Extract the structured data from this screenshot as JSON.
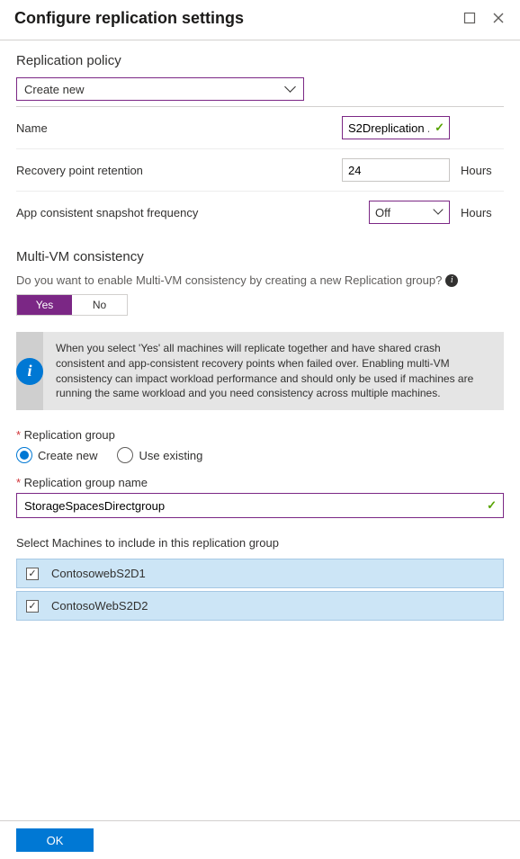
{
  "header": {
    "title": "Configure replication settings"
  },
  "policy": {
    "section_title": "Replication policy",
    "dropdown_value": "Create new",
    "name_label": "Name",
    "name_value": "S2Dreplication ...",
    "retention_label": "Recovery point retention",
    "retention_value": "24",
    "retention_unit": "Hours",
    "snapshot_label": "App consistent snapshot frequency",
    "snapshot_value": "Off",
    "snapshot_unit": "Hours"
  },
  "multivm": {
    "section_title": "Multi-VM consistency",
    "question": "Do you want to enable Multi-VM consistency by creating a new Replication group?",
    "yes": "Yes",
    "no": "No",
    "info_text": "When you select 'Yes' all machines will replicate together and have shared crash consistent and app-consistent recovery points when failed over. Enabling multi-VM consistency can impact workload performance and should only be used if machines are running the same workload and you need consistency across multiple machines."
  },
  "repgroup": {
    "label": "Replication group",
    "create_new": "Create new",
    "use_existing": "Use existing",
    "name_label": "Replication group name",
    "name_value": "StorageSpacesDirectgroup",
    "select_label": "Select Machines to include in this replication group",
    "machines": [
      "ContosowebS2D1",
      "ContosoWebS2D2"
    ]
  },
  "footer": {
    "ok": "OK"
  },
  "colors": {
    "accent_purple": "#7b2785",
    "accent_blue": "#0078d4",
    "valid_green": "#57a300",
    "row_blue": "#cce5f6"
  }
}
